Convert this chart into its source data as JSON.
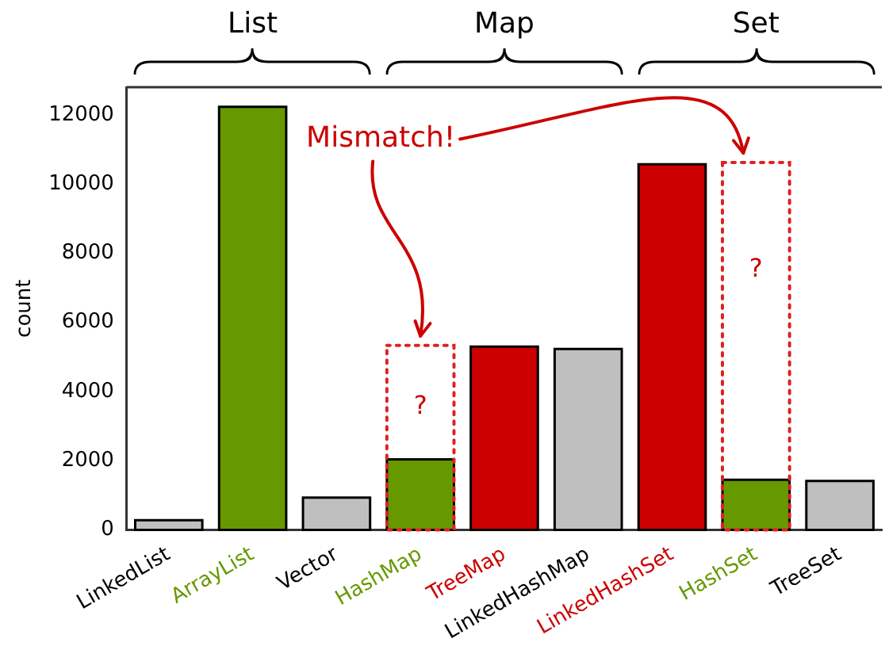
{
  "chart_data": {
    "type": "bar",
    "ylabel": "count",
    "categories": [
      "LinkedList",
      "ArrayList",
      "Vector",
      "HashMap",
      "TreeMap",
      "LinkedHashMap",
      "LinkedHashSet",
      "HashSet",
      "TreeSet"
    ],
    "series": [
      {
        "values": [
          280,
          12230,
          930,
          2040,
          5300,
          5230,
          10570,
          1450,
          1410
        ],
        "colors": [
          "#bfbfbf",
          "#669900",
          "#bfbfbf",
          "#669900",
          "#cc0000",
          "#bfbfbf",
          "#cc0000",
          "#669900",
          "#bfbfbf"
        ]
      },
      {
        "color": "#dd2222",
        "line_style": "dotted",
        "values": [
          null,
          null,
          null,
          5330,
          null,
          null,
          null,
          10620,
          null
        ]
      }
    ],
    "ylim": [
      0,
      12800
    ],
    "yticks": [
      0,
      2000,
      4000,
      6000,
      8000,
      10000,
      12000
    ],
    "annotations": [
      "List",
      "Map",
      "Set",
      "Mismatch!",
      "?",
      "?"
    ]
  }
}
